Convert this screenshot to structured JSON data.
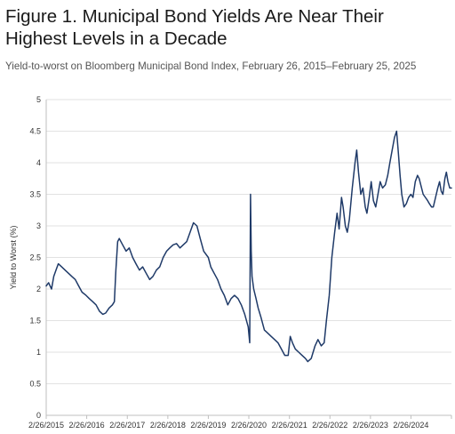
{
  "title": "Figure 1. Municipal Bond Yields Are Near Their Highest Levels in a Decade",
  "subtitle": "Yield-to-worst on Bloomberg Municipal Bond Index, February 26, 2015–February 25, 2025",
  "colors": {
    "line": "#1f3a68",
    "grid": "#d9d9d9",
    "axis": "#bfbfbf"
  },
  "chart_data": {
    "type": "line",
    "title": "Figure 1. Municipal Bond Yields Are Near Their Highest Levels in a Decade",
    "subtitle": "Yield-to-worst on Bloomberg Municipal Bond Index, February 26, 2015–February 25, 2025",
    "xlabel": "",
    "ylabel": "Yield to Worst (%)",
    "ylim": [
      0,
      5
    ],
    "xlim": [
      "2015-02-26",
      "2025-02-25"
    ],
    "yticks": [
      "0",
      "0.5",
      "1",
      "1.5",
      "2",
      "2.5",
      "3",
      "3.5",
      "4",
      "4.5",
      "5"
    ],
    "xticks": [
      "2/26/2015",
      "2/26/2016",
      "2/26/2017",
      "2/26/2018",
      "2/26/2019",
      "2/26/2020",
      "2/26/2021",
      "2/26/2022",
      "2/26/2023",
      "2/26/2024"
    ],
    "grid": "horizontal",
    "legend": "none",
    "series": [
      {
        "points": [
          [
            "2015-02-26",
            2.05
          ],
          [
            "2015-03-20",
            2.1
          ],
          [
            "2015-04-15",
            2.0
          ],
          [
            "2015-05-05",
            2.2
          ],
          [
            "2015-05-25",
            2.3
          ],
          [
            "2015-06-15",
            2.4
          ],
          [
            "2015-07-15",
            2.35
          ],
          [
            "2015-08-15",
            2.3
          ],
          [
            "2015-09-15",
            2.25
          ],
          [
            "2015-10-15",
            2.2
          ],
          [
            "2015-11-15",
            2.15
          ],
          [
            "2015-12-15",
            2.05
          ],
          [
            "2016-01-15",
            1.95
          ],
          [
            "2016-02-20",
            1.9
          ],
          [
            "2016-03-20",
            1.85
          ],
          [
            "2016-04-20",
            1.8
          ],
          [
            "2016-05-20",
            1.75
          ],
          [
            "2016-06-20",
            1.65
          ],
          [
            "2016-07-20",
            1.6
          ],
          [
            "2016-08-15",
            1.62
          ],
          [
            "2016-09-15",
            1.7
          ],
          [
            "2016-10-15",
            1.75
          ],
          [
            "2016-11-01",
            1.8
          ],
          [
            "2016-11-15",
            2.3
          ],
          [
            "2016-12-01",
            2.75
          ],
          [
            "2016-12-15",
            2.8
          ],
          [
            "2017-01-15",
            2.7
          ],
          [
            "2017-02-15",
            2.6
          ],
          [
            "2017-03-15",
            2.65
          ],
          [
            "2017-04-15",
            2.5
          ],
          [
            "2017-05-15",
            2.4
          ],
          [
            "2017-06-15",
            2.3
          ],
          [
            "2017-07-15",
            2.35
          ],
          [
            "2017-08-15",
            2.25
          ],
          [
            "2017-09-15",
            2.15
          ],
          [
            "2017-10-15",
            2.2
          ],
          [
            "2017-11-15",
            2.3
          ],
          [
            "2017-12-15",
            2.35
          ],
          [
            "2018-01-15",
            2.5
          ],
          [
            "2018-02-15",
            2.6
          ],
          [
            "2018-03-15",
            2.65
          ],
          [
            "2018-04-15",
            2.7
          ],
          [
            "2018-05-15",
            2.72
          ],
          [
            "2018-06-15",
            2.65
          ],
          [
            "2018-07-15",
            2.7
          ],
          [
            "2018-08-15",
            2.75
          ],
          [
            "2018-09-15",
            2.9
          ],
          [
            "2018-10-15",
            3.05
          ],
          [
            "2018-11-15",
            3.0
          ],
          [
            "2018-12-15",
            2.8
          ],
          [
            "2019-01-15",
            2.6
          ],
          [
            "2019-02-26",
            2.5
          ],
          [
            "2019-03-20",
            2.35
          ],
          [
            "2019-04-20",
            2.25
          ],
          [
            "2019-05-20",
            2.15
          ],
          [
            "2019-06-20",
            2.0
          ],
          [
            "2019-07-20",
            1.9
          ],
          [
            "2019-08-20",
            1.75
          ],
          [
            "2019-09-20",
            1.85
          ],
          [
            "2019-10-20",
            1.9
          ],
          [
            "2019-11-20",
            1.85
          ],
          [
            "2019-12-20",
            1.75
          ],
          [
            "2020-01-20",
            1.6
          ],
          [
            "2020-02-20",
            1.4
          ],
          [
            "2020-03-05",
            1.15
          ],
          [
            "2020-03-12",
            3.5
          ],
          [
            "2020-03-19",
            2.6
          ],
          [
            "2020-03-26",
            2.2
          ],
          [
            "2020-04-10",
            2.0
          ],
          [
            "2020-05-01",
            1.85
          ],
          [
            "2020-05-20",
            1.7
          ],
          [
            "2020-06-15",
            1.55
          ],
          [
            "2020-07-15",
            1.35
          ],
          [
            "2020-08-15",
            1.3
          ],
          [
            "2020-09-15",
            1.25
          ],
          [
            "2020-10-15",
            1.2
          ],
          [
            "2020-11-15",
            1.15
          ],
          [
            "2020-12-15",
            1.05
          ],
          [
            "2021-01-15",
            0.95
          ],
          [
            "2021-02-15",
            0.95
          ],
          [
            "2021-03-05",
            1.25
          ],
          [
            "2021-03-25",
            1.15
          ],
          [
            "2021-04-20",
            1.05
          ],
          [
            "2021-05-20",
            1.0
          ],
          [
            "2021-06-20",
            0.95
          ],
          [
            "2021-07-20",
            0.9
          ],
          [
            "2021-08-10",
            0.85
          ],
          [
            "2021-09-10",
            0.9
          ],
          [
            "2021-10-15",
            1.1
          ],
          [
            "2021-11-10",
            1.2
          ],
          [
            "2021-12-10",
            1.1
          ],
          [
            "2022-01-05",
            1.15
          ],
          [
            "2022-01-25",
            1.5
          ],
          [
            "2022-02-20",
            1.9
          ],
          [
            "2022-03-15",
            2.5
          ],
          [
            "2022-04-10",
            2.9
          ],
          [
            "2022-05-01",
            3.2
          ],
          [
            "2022-05-20",
            2.95
          ],
          [
            "2022-06-10",
            3.45
          ],
          [
            "2022-06-25",
            3.3
          ],
          [
            "2022-07-15",
            3.0
          ],
          [
            "2022-08-01",
            2.9
          ],
          [
            "2022-08-20",
            3.1
          ],
          [
            "2022-09-15",
            3.6
          ],
          [
            "2022-10-10",
            4.0
          ],
          [
            "2022-10-25",
            4.2
          ],
          [
            "2022-11-10",
            3.85
          ],
          [
            "2022-12-01",
            3.5
          ],
          [
            "2022-12-20",
            3.6
          ],
          [
            "2023-01-10",
            3.3
          ],
          [
            "2023-01-25",
            3.2
          ],
          [
            "2023-02-15",
            3.45
          ],
          [
            "2023-03-05",
            3.7
          ],
          [
            "2023-03-25",
            3.4
          ],
          [
            "2023-04-15",
            3.3
          ],
          [
            "2023-05-05",
            3.5
          ],
          [
            "2023-05-25",
            3.7
          ],
          [
            "2023-06-15",
            3.6
          ],
          [
            "2023-07-10",
            3.65
          ],
          [
            "2023-08-01",
            3.8
          ],
          [
            "2023-08-20",
            4.0
          ],
          [
            "2023-09-10",
            4.2
          ],
          [
            "2023-10-01",
            4.4
          ],
          [
            "2023-10-20",
            4.5
          ],
          [
            "2023-11-05",
            4.15
          ],
          [
            "2023-11-20",
            3.8
          ],
          [
            "2023-12-05",
            3.5
          ],
          [
            "2023-12-25",
            3.3
          ],
          [
            "2024-01-15",
            3.35
          ],
          [
            "2024-02-05",
            3.45
          ],
          [
            "2024-02-26",
            3.5
          ],
          [
            "2024-03-15",
            3.45
          ],
          [
            "2024-04-05",
            3.7
          ],
          [
            "2024-04-25",
            3.8
          ],
          [
            "2024-05-10",
            3.75
          ],
          [
            "2024-05-25",
            3.65
          ],
          [
            "2024-06-15",
            3.5
          ],
          [
            "2024-07-05",
            3.45
          ],
          [
            "2024-07-25",
            3.4
          ],
          [
            "2024-08-10",
            3.35
          ],
          [
            "2024-08-30",
            3.3
          ],
          [
            "2024-09-15",
            3.3
          ],
          [
            "2024-10-05",
            3.45
          ],
          [
            "2024-10-25",
            3.6
          ],
          [
            "2024-11-10",
            3.7
          ],
          [
            "2024-11-25",
            3.55
          ],
          [
            "2024-12-10",
            3.5
          ],
          [
            "2024-12-28",
            3.75
          ],
          [
            "2025-01-10",
            3.85
          ],
          [
            "2025-01-25",
            3.7
          ],
          [
            "2025-02-10",
            3.6
          ],
          [
            "2025-02-25",
            3.6
          ]
        ]
      }
    ]
  }
}
